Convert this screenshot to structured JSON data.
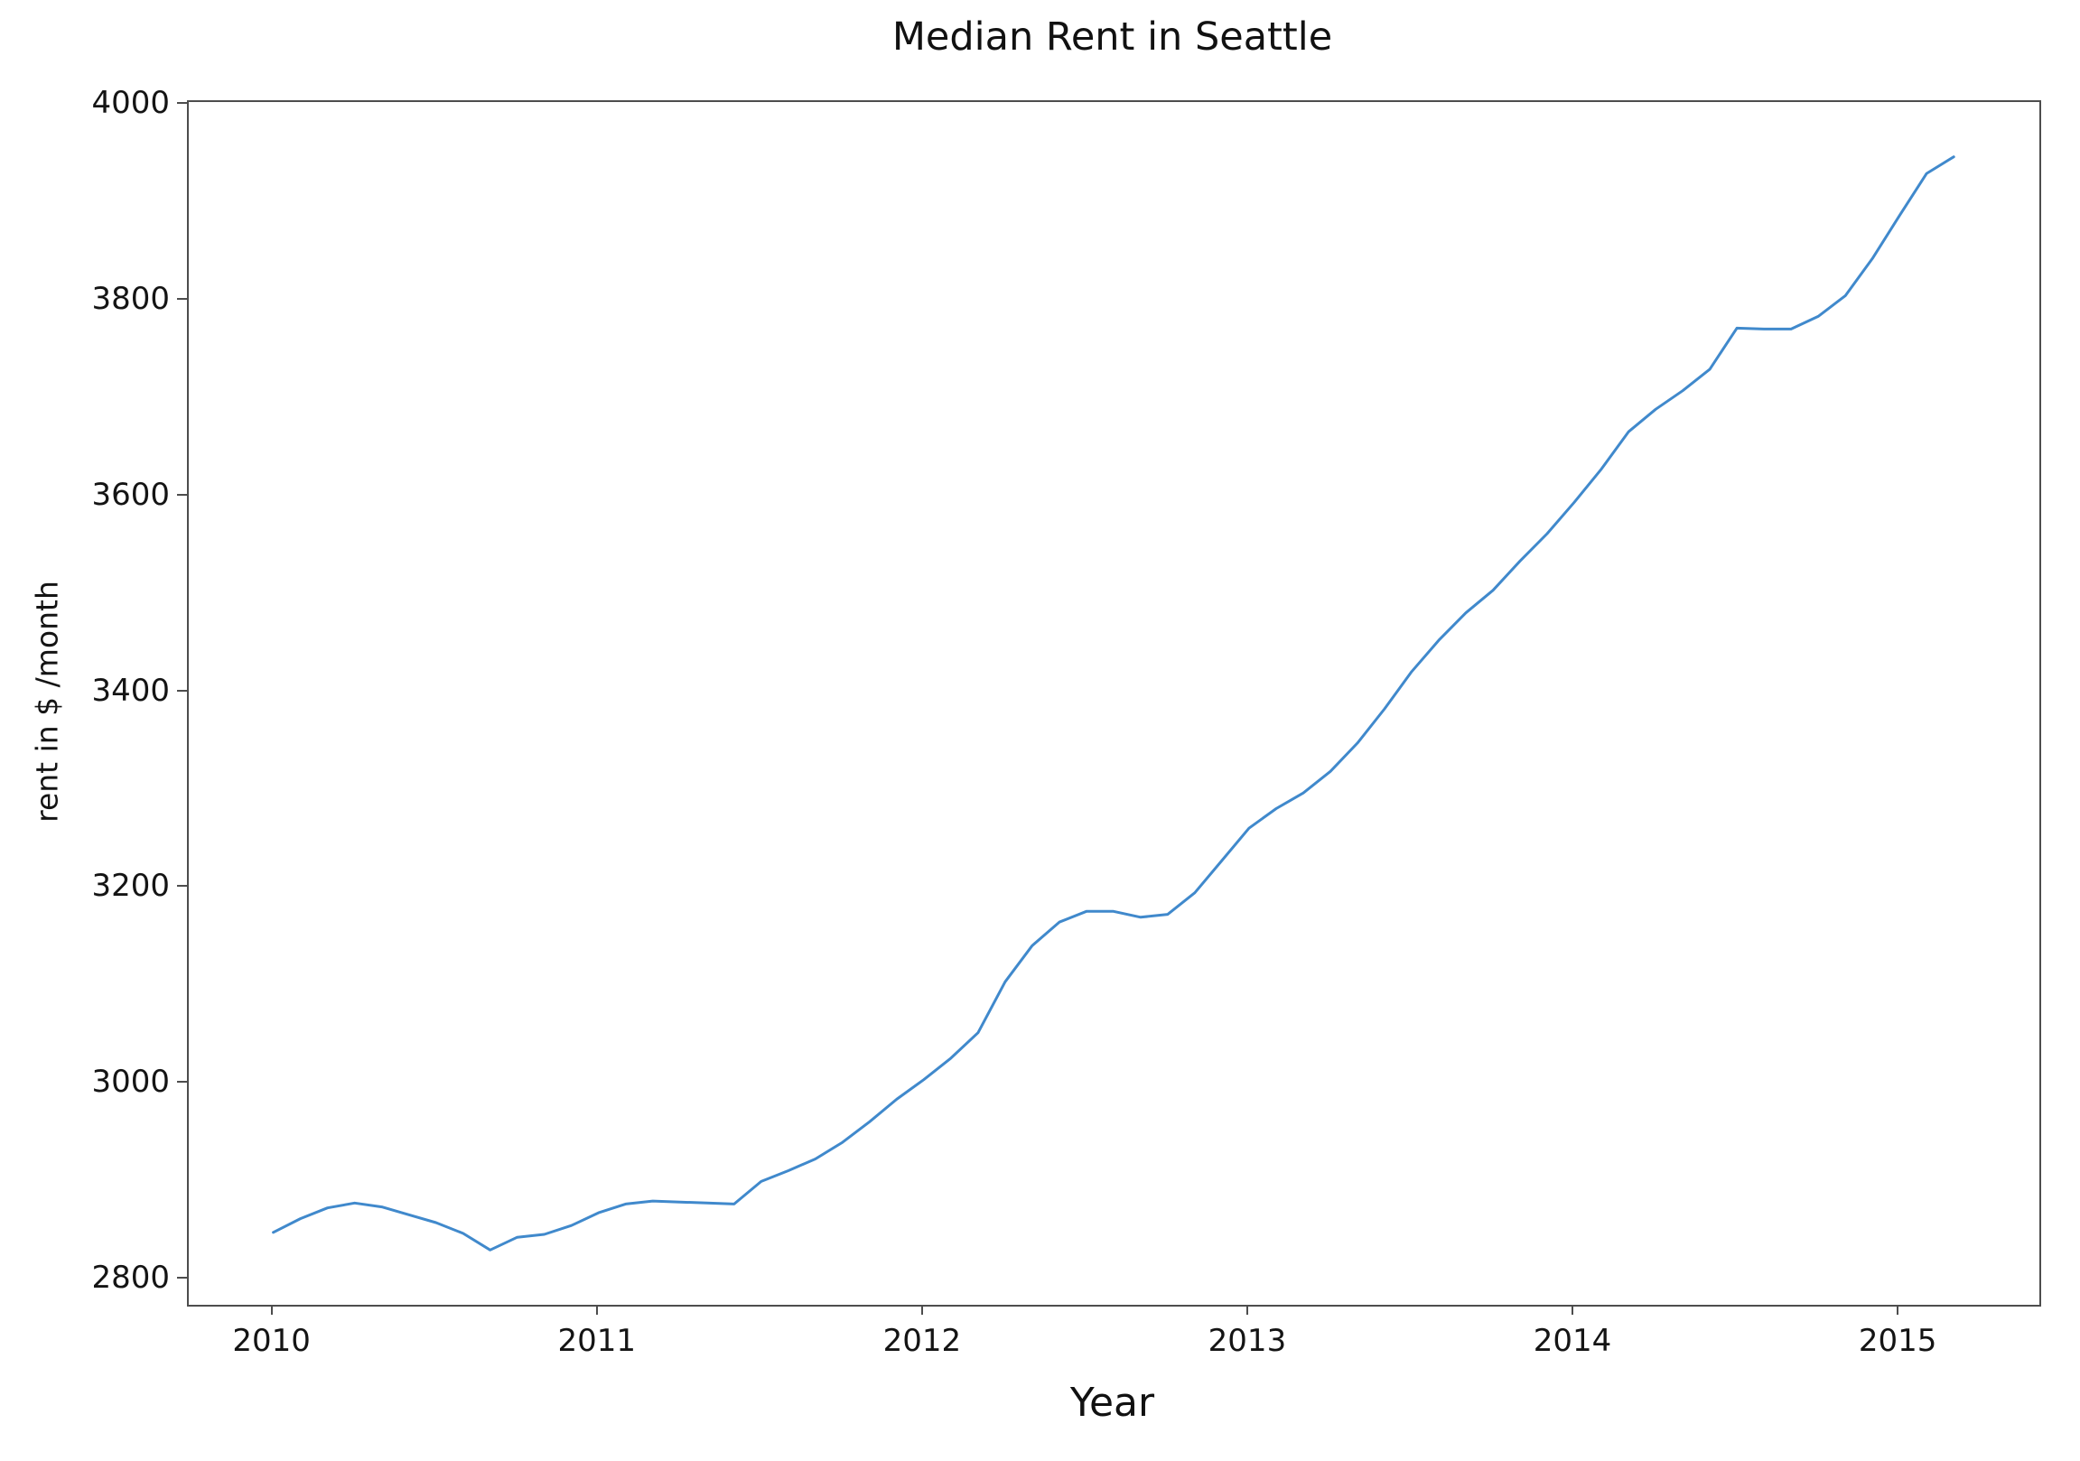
{
  "figure": {
    "background_color": "#ffffff"
  },
  "chart_data": {
    "type": "line",
    "title": "Median Rent in Seattle",
    "xlabel": "Year",
    "ylabel": "rent in $ /month",
    "grid": false,
    "legend": null,
    "line_color": "#4089cc",
    "line_width": 3,
    "xlim": [
      2009.74,
      2015.43
    ],
    "ylim": [
      2774,
      4003
    ],
    "xticks": [
      2010,
      2011,
      2012,
      2013,
      2014,
      2015
    ],
    "yticks": [
      2800,
      3000,
      3200,
      3400,
      3600,
      3800,
      4000
    ],
    "x_start_year": 2010,
    "x_interval_years": 0.0833333,
    "x_unit": "month",
    "series_name": "median_rent",
    "values": [
      2848,
      2862,
      2873,
      2878,
      2874,
      2866,
      2858,
      2847,
      2830,
      2843,
      2846,
      2855,
      2868,
      2877,
      2880,
      2879,
      2878,
      2877,
      2900,
      2911,
      2923,
      2940,
      2961,
      2984,
      3004,
      3026,
      3052,
      3104,
      3141,
      3165,
      3176,
      3176,
      3170,
      3173,
      3195,
      3228,
      3261,
      3281,
      3297,
      3319,
      3348,
      3383,
      3421,
      3453,
      3481,
      3504,
      3534,
      3562,
      3594,
      3628,
      3666,
      3689,
      3708,
      3730,
      3772,
      3771,
      3771,
      3784,
      3805,
      3843,
      3887,
      3930,
      3947
    ]
  }
}
